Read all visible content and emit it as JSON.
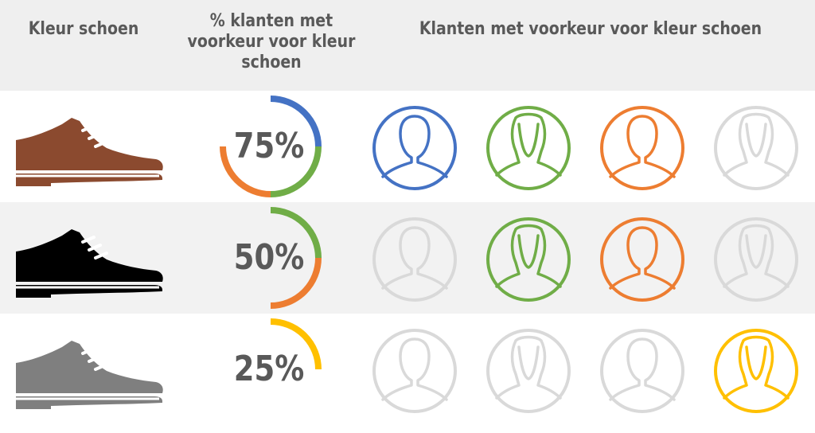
{
  "header": {
    "col1": "Kleur schoen",
    "col2_line1": "% klanten met",
    "col2_line2": "voorkeur voor kleur",
    "col2_line3": "schoen",
    "col3": "Klanten met voorkeur voor kleur schoen"
  },
  "chart_data": {
    "type": "table",
    "columns": [
      "Kleur schoen",
      "% klanten met voorkeur voor kleur schoen",
      "Klanten met voorkeur voor kleur schoen"
    ],
    "rows": [
      {
        "shoe_color": "#8B4A2F",
        "label": "75%",
        "value": 75,
        "segments": [
          "#4472C4",
          "#70AD47",
          "#ED7D31"
        ],
        "people": [
          {
            "color": "#4472C4",
            "icon": "male-person-icon"
          },
          {
            "color": "#70AD47",
            "icon": "female-person-icon"
          },
          {
            "color": "#ED7D31",
            "icon": "male-person-icon"
          },
          {
            "color": "#D9D9D9",
            "icon": "female-person-icon"
          }
        ]
      },
      {
        "shoe_color": "#000000",
        "label": "50%",
        "value": 50,
        "segments": [
          "#70AD47",
          "#ED7D31"
        ],
        "people": [
          {
            "color": "#D9D9D9",
            "icon": "male-person-icon"
          },
          {
            "color": "#70AD47",
            "icon": "female-person-icon"
          },
          {
            "color": "#ED7D31",
            "icon": "male-person-icon"
          },
          {
            "color": "#D9D9D9",
            "icon": "female-person-icon"
          }
        ]
      },
      {
        "shoe_color": "#7F7F7F",
        "label": "25%",
        "value": 25,
        "segments": [
          "#FFC000"
        ],
        "people": [
          {
            "color": "#D9D9D9",
            "icon": "male-person-icon"
          },
          {
            "color": "#D9D9D9",
            "icon": "female-person-icon"
          },
          {
            "color": "#D9D9D9",
            "icon": "male-person-icon"
          },
          {
            "color": "#FFC000",
            "icon": "female-person-icon"
          }
        ]
      }
    ]
  }
}
